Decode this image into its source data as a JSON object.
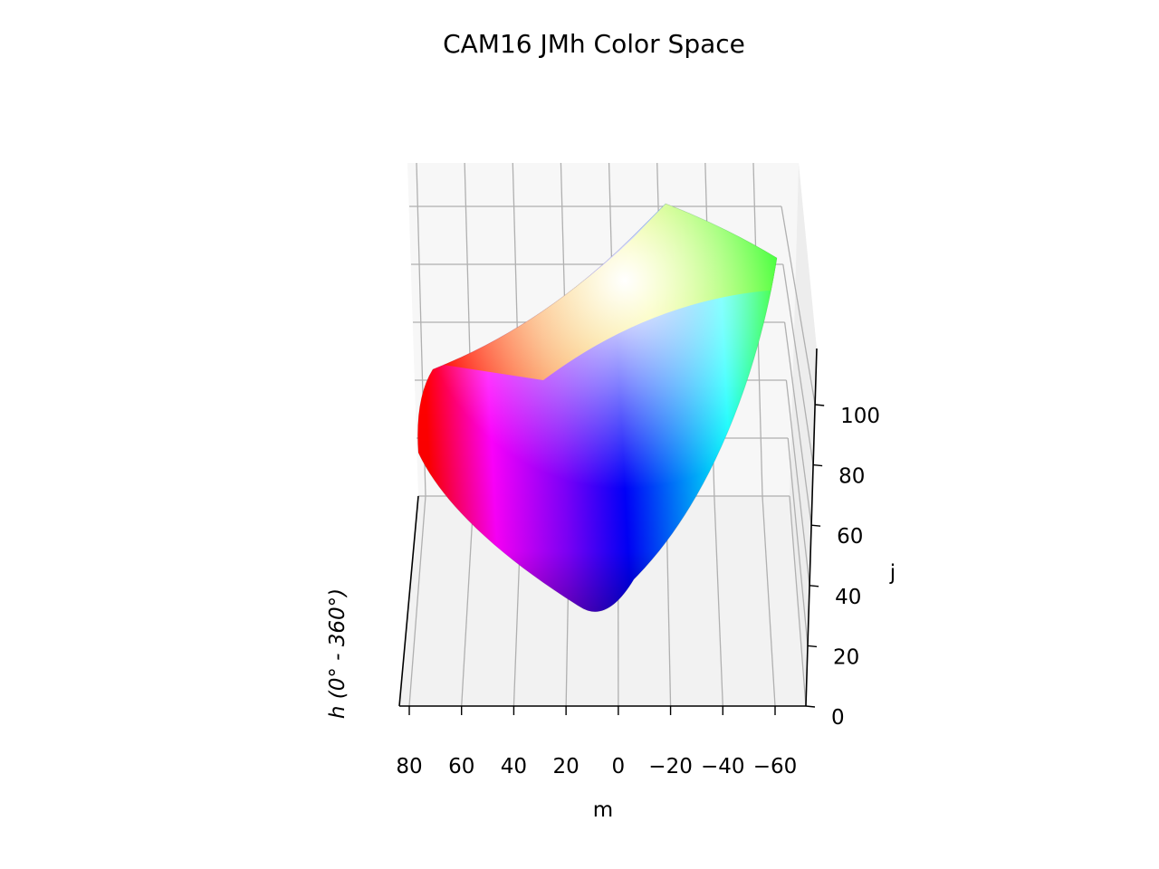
{
  "chart_data": {
    "type": "scatter",
    "projection": "3d",
    "title": "CAM16 JMh Color Space",
    "xlabel": "m",
    "ylabel": "h (0° - 360°)",
    "zlabel": "j",
    "xticks": [
      80,
      60,
      40,
      20,
      0,
      -20,
      -40,
      -60
    ],
    "xtick_labels": [
      "80",
      "60",
      "40",
      "20",
      "0",
      "−20",
      "−40",
      "−60"
    ],
    "zticks": [
      0,
      20,
      40,
      60,
      80,
      100
    ],
    "zlim": [
      0,
      115
    ],
    "grid": true,
    "surface_colors": {
      "red": "#ff0000",
      "orange": "#ff8c1a",
      "yellow": "#ffff00",
      "green": "#00ff00",
      "cyan": "#00ffff",
      "blue": "#0000ff",
      "violet": "#8000ff",
      "magenta": "#ff00ff",
      "white": "#ffffff",
      "black": "#000000"
    }
  }
}
